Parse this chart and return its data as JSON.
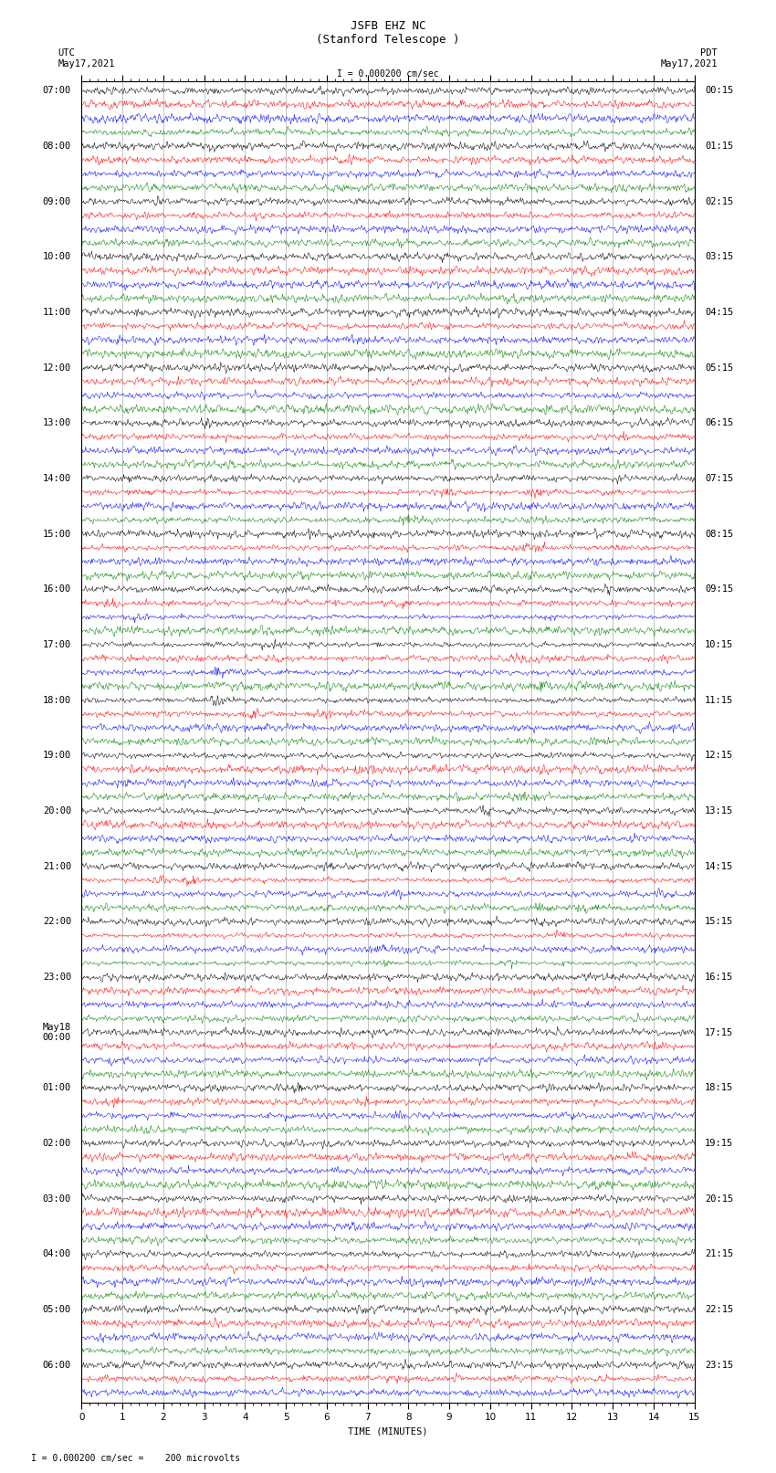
{
  "title_line1": "JSFB EHZ NC",
  "title_line2": "(Stanford Telescope )",
  "scale_label": "I = 0.000200 cm/sec",
  "utc_label": "UTC\nMay17,2021",
  "pdt_label": "PDT\nMay17,2021",
  "xlabel": "TIME (MINUTES)",
  "footer": "I = 0.000200 cm/sec =    200 microvolts",
  "left_times": [
    "07:00",
    "",
    "",
    "",
    "08:00",
    "",
    "",
    "",
    "09:00",
    "",
    "",
    "",
    "10:00",
    "",
    "",
    "",
    "11:00",
    "",
    "",
    "",
    "12:00",
    "",
    "",
    "",
    "13:00",
    "",
    "",
    "",
    "14:00",
    "",
    "",
    "",
    "15:00",
    "",
    "",
    "",
    "16:00",
    "",
    "",
    "",
    "17:00",
    "",
    "",
    "",
    "18:00",
    "",
    "",
    "",
    "19:00",
    "",
    "",
    "",
    "20:00",
    "",
    "",
    "",
    "21:00",
    "",
    "",
    "",
    "22:00",
    "",
    "",
    "",
    "23:00",
    "",
    "",
    "",
    "May18\n00:00",
    "",
    "",
    "",
    "01:00",
    "",
    "",
    "",
    "02:00",
    "",
    "",
    "",
    "03:00",
    "",
    "",
    "",
    "04:00",
    "",
    "",
    "",
    "05:00",
    "",
    "",
    "",
    "06:00",
    "",
    ""
  ],
  "right_times": [
    "00:15",
    "",
    "",
    "",
    "01:15",
    "",
    "",
    "",
    "02:15",
    "",
    "",
    "",
    "03:15",
    "",
    "",
    "",
    "04:15",
    "",
    "",
    "",
    "05:15",
    "",
    "",
    "",
    "06:15",
    "",
    "",
    "",
    "07:15",
    "",
    "",
    "",
    "08:15",
    "",
    "",
    "",
    "09:15",
    "",
    "",
    "",
    "10:15",
    "",
    "",
    "",
    "11:15",
    "",
    "",
    "",
    "12:15",
    "",
    "",
    "",
    "13:15",
    "",
    "",
    "",
    "14:15",
    "",
    "",
    "",
    "15:15",
    "",
    "",
    "",
    "16:15",
    "",
    "",
    "",
    "17:15",
    "",
    "",
    "",
    "18:15",
    "",
    "",
    "",
    "19:15",
    "",
    "",
    "",
    "20:15",
    "",
    "",
    "",
    "21:15",
    "",
    "",
    "",
    "22:15",
    "",
    "",
    "",
    "23:15",
    "",
    ""
  ],
  "colors": [
    "black",
    "red",
    "blue",
    "green"
  ],
  "n_rows": 95,
  "n_minutes": 15,
  "samples_per_row": 900,
  "bg_color": "white",
  "vline_color": "#888888",
  "title_fontsize": 9,
  "label_fontsize": 7.5,
  "tick_fontsize": 7.5,
  "seed": 42
}
